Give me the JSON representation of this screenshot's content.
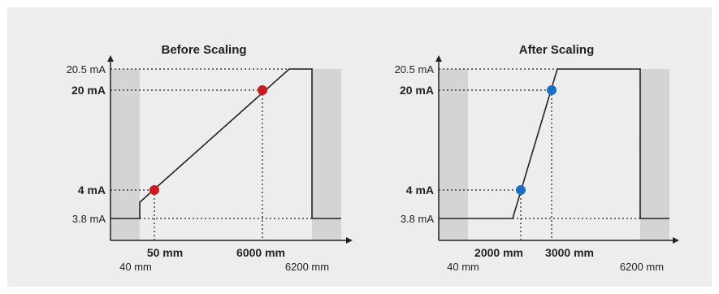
{
  "colors": {
    "background_panel": "#ededed",
    "shade": "#d4d4d4",
    "line": "#222222",
    "before_points": "#d0191f",
    "after_points": "#1a6fc4"
  },
  "chart_data": [
    {
      "type": "line",
      "title": "Before Scaling",
      "y_ticks": [
        {
          "value": 20.5,
          "label": "20.5 mA",
          "bold": false
        },
        {
          "value": 20,
          "label": "20 mA",
          "bold": true
        },
        {
          "value": 4,
          "label": "4 mA",
          "bold": true
        },
        {
          "value": 3.8,
          "label": "3.8 mA",
          "bold": false
        }
      ],
      "x_ticks": [
        {
          "value": 40,
          "label": "40 mm",
          "bold": false
        },
        {
          "value": 50,
          "label": "50 mm",
          "bold": true
        },
        {
          "value": 6000,
          "label": "6000 mm",
          "bold": true
        },
        {
          "value": 6200,
          "label": "6200 mm",
          "bold": false
        }
      ],
      "points": [
        {
          "x": 50,
          "y": 4
        },
        {
          "x": 6000,
          "y": 20
        }
      ],
      "point_color": "#d0191f"
    },
    {
      "type": "line",
      "title": "After Scaling",
      "y_ticks": [
        {
          "value": 20.5,
          "label": "20.5 mA",
          "bold": false
        },
        {
          "value": 20,
          "label": "20 mA",
          "bold": true
        },
        {
          "value": 4,
          "label": "4 mA",
          "bold": true
        },
        {
          "value": 3.8,
          "label": "3.8 mA",
          "bold": false
        }
      ],
      "x_ticks": [
        {
          "value": 40,
          "label": "40 mm",
          "bold": false
        },
        {
          "value": 2000,
          "label": "2000 mm",
          "bold": true
        },
        {
          "value": 3000,
          "label": "3000 mm",
          "bold": true
        },
        {
          "value": 6200,
          "label": "6200 mm",
          "bold": false
        }
      ],
      "points": [
        {
          "x": 2000,
          "y": 4
        },
        {
          "x": 3000,
          "y": 20
        }
      ],
      "point_color": "#1a6fc4"
    }
  ]
}
